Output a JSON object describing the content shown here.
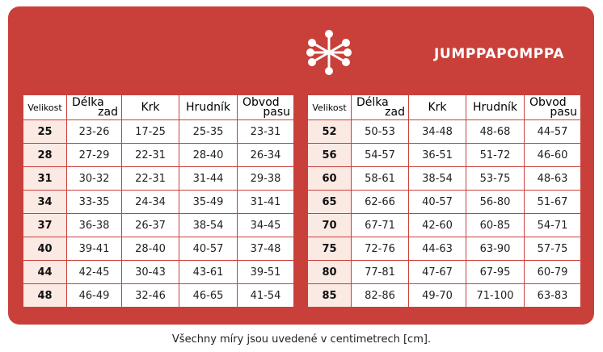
{
  "brand": {
    "name": "JUMPPAPOMPPA",
    "logo_icon": "snowflake-icon"
  },
  "colors": {
    "primary_red": "#c9403a",
    "size_cell_bg": "#fbe9e3"
  },
  "headers": {
    "size": "Velikost",
    "back_length": [
      "Délka",
      "zad"
    ],
    "neck": "Krk",
    "chest": "Hrudník",
    "waist": [
      "Obvod",
      "pasu"
    ]
  },
  "table_left": [
    [
      "25",
      "23-26",
      "17-25",
      "25-35",
      "23-31"
    ],
    [
      "28",
      "27-29",
      "22-31",
      "28-40",
      "26-34"
    ],
    [
      "31",
      "30-32",
      "22-31",
      "31-44",
      "29-38"
    ],
    [
      "34",
      "33-35",
      "24-34",
      "35-49",
      "31-41"
    ],
    [
      "37",
      "36-38",
      "26-37",
      "38-54",
      "34-45"
    ],
    [
      "40",
      "39-41",
      "28-40",
      "40-57",
      "37-48"
    ],
    [
      "44",
      "42-45",
      "30-43",
      "43-61",
      "39-51"
    ],
    [
      "48",
      "46-49",
      "32-46",
      "46-65",
      "41-54"
    ]
  ],
  "table_right": [
    [
      "52",
      "50-53",
      "34-48",
      "48-68",
      "44-57"
    ],
    [
      "56",
      "54-57",
      "36-51",
      "51-72",
      "46-60"
    ],
    [
      "60",
      "58-61",
      "38-54",
      "53-75",
      "48-63"
    ],
    [
      "65",
      "62-66",
      "40-57",
      "56-80",
      "51-67"
    ],
    [
      "70",
      "67-71",
      "42-60",
      "60-85",
      "54-71"
    ],
    [
      "75",
      "72-76",
      "44-63",
      "63-90",
      "57-75"
    ],
    [
      "80",
      "77-81",
      "47-67",
      "67-95",
      "60-79"
    ],
    [
      "85",
      "82-86",
      "49-70",
      "71-100",
      "63-83"
    ]
  ],
  "footer": "Všechny míry jsou uvedené v centimetrech [cm]."
}
